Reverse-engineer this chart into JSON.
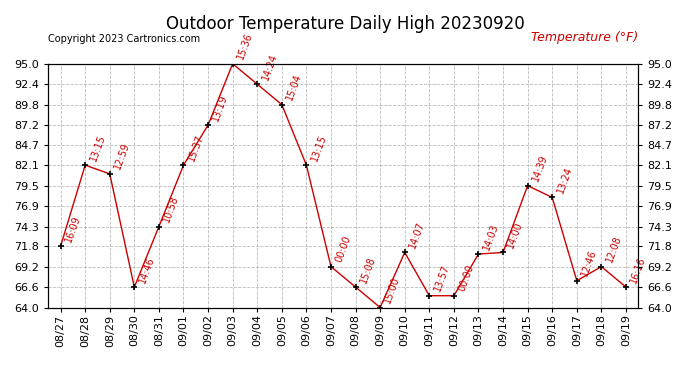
{
  "title": "Outdoor Temperature Daily High 20230920",
  "copyright": "Copyright 2023 Cartronics.com",
  "ylabel": "Temperature (°F)",
  "dates": [
    "08/27",
    "08/28",
    "08/29",
    "08/30",
    "08/31",
    "09/01",
    "09/02",
    "09/03",
    "09/04",
    "09/05",
    "09/06",
    "09/07",
    "09/08",
    "09/09",
    "09/10",
    "09/11",
    "09/12",
    "09/13",
    "09/14",
    "09/15",
    "09/16",
    "09/17",
    "09/18",
    "09/19"
  ],
  "temps": [
    71.8,
    82.1,
    81.0,
    66.6,
    74.3,
    82.1,
    87.2,
    95.0,
    92.4,
    89.8,
    82.1,
    69.2,
    66.6,
    64.0,
    71.0,
    65.5,
    65.5,
    70.8,
    71.0,
    79.5,
    78.0,
    67.4,
    69.2,
    66.6
  ],
  "times": [
    "16:09",
    "13:15",
    "12:59",
    "14:46",
    "10:58",
    "15:37",
    "13:19",
    "15:36",
    "14:24",
    "15:04",
    "13:15",
    "00:00",
    "15:08",
    "15:00",
    "14:07",
    "13:57",
    "00:00",
    "14:03",
    "14:00",
    "14:39",
    "13:24",
    "12:46",
    "12:08",
    "16:16"
  ],
  "ylim": [
    64.0,
    95.0
  ],
  "yticks": [
    64.0,
    66.6,
    69.2,
    71.8,
    74.3,
    76.9,
    79.5,
    82.1,
    84.7,
    87.2,
    89.8,
    92.4,
    95.0
  ],
  "line_color": "#cc0000",
  "marker_color": "#000000",
  "bg_color": "#ffffff",
  "grid_color": "#aaaaaa",
  "title_fontsize": 12,
  "copyright_fontsize": 7,
  "ylabel_fontsize": 9,
  "tick_fontsize": 8,
  "annot_fontsize": 7
}
